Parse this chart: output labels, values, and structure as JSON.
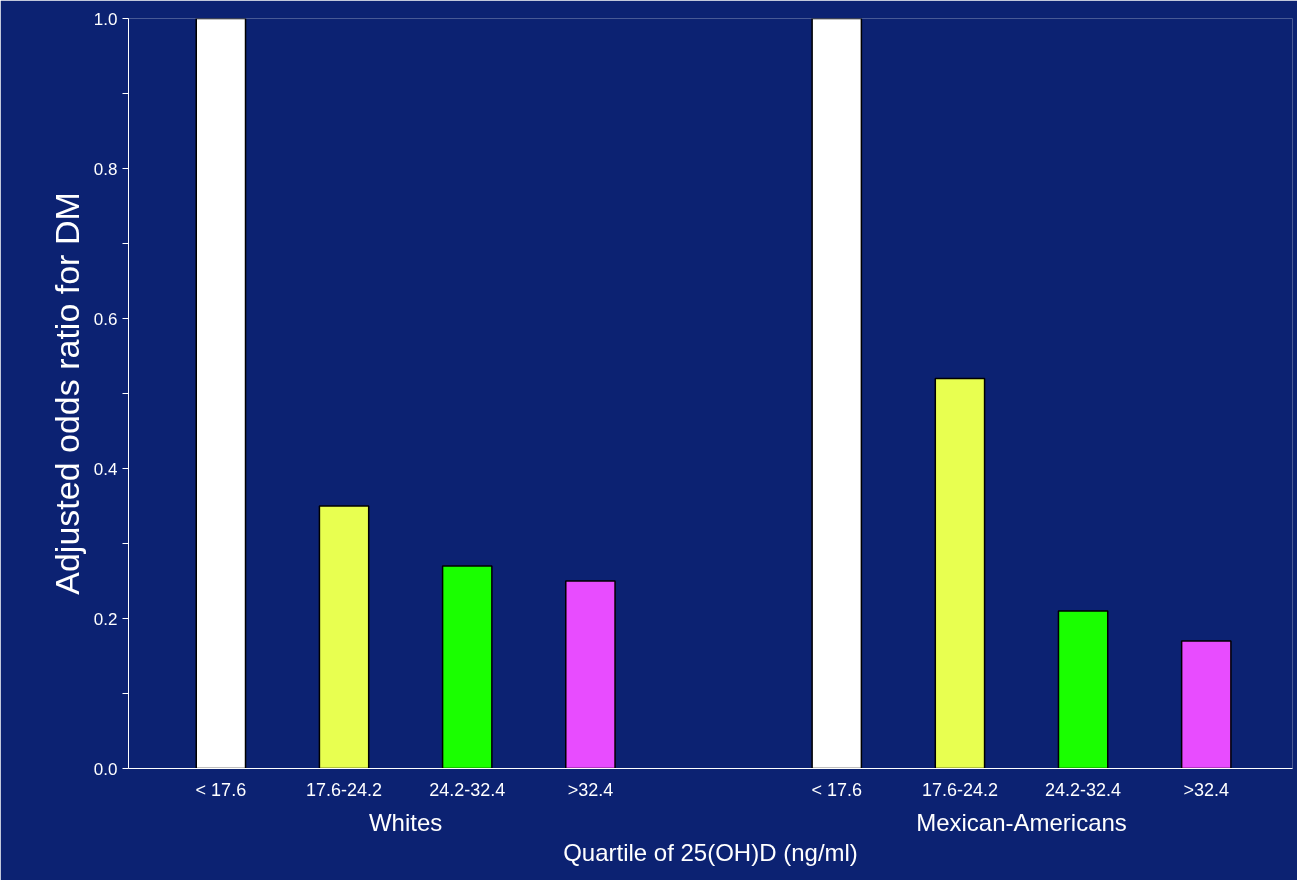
{
  "chart_data": {
    "type": "bar",
    "ylabel": "Adjusted odds ratio for DM",
    "xlabel": "Quartile of 25(OH)D (ng/ml)",
    "categories": [
      "< 17.6",
      "17.6-24.2",
      "24.2-32.4",
      ">32.4",
      null,
      "< 17.6",
      "17.6-24.2",
      "24.2-32.4",
      ">32.4"
    ],
    "values": [
      1.0,
      0.35,
      0.27,
      0.25,
      null,
      1.0,
      0.52,
      0.21,
      0.17
    ],
    "colors": [
      "#ffffff",
      "#e8ff50",
      "#1aff00",
      "#e84cff",
      null,
      "#ffffff",
      "#e8ff50",
      "#1aff00",
      "#e84cff"
    ],
    "ylim": [
      0,
      1.0
    ],
    "yticks": [
      {
        "value": 0,
        "label": "0.0"
      },
      {
        "value": 0.1,
        "label": null
      },
      {
        "value": 0.2,
        "label": "0.2"
      },
      {
        "value": 0.3,
        "label": null
      },
      {
        "value": 0.4,
        "label": "0.4"
      },
      {
        "value": 0.5,
        "label": null
      },
      {
        "value": 0.6,
        "label": "0.6"
      },
      {
        "value": 0.7,
        "label": null
      },
      {
        "value": 0.8,
        "label": "0.8"
      },
      {
        "value": 0.9,
        "label": null
      },
      {
        "value": 1.0,
        "label": "1.0"
      }
    ],
    "annotations": [
      "Whites",
      "Mexican-Americans"
    ],
    "grid": false
  }
}
